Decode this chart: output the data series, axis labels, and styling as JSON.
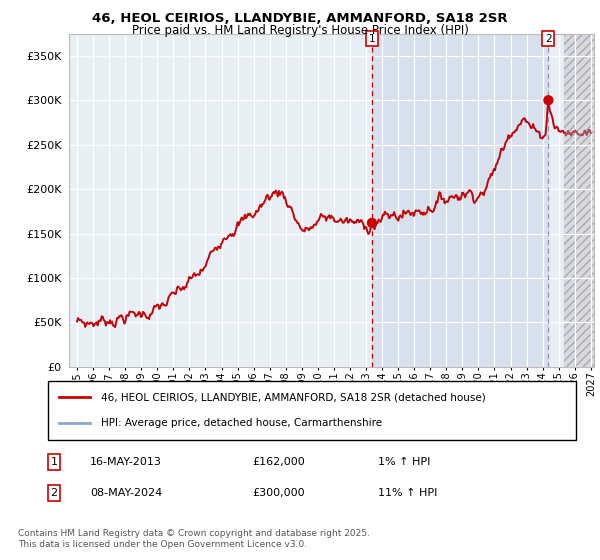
{
  "title": "46, HEOL CEIRIOS, LLANDYBIE, AMMANFORD, SA18 2SR",
  "subtitle": "Price paid vs. HM Land Registry's House Price Index (HPI)",
  "legend_line1": "46, HEOL CEIRIOS, LLANDYBIE, AMMANFORD, SA18 2SR (detached house)",
  "legend_line2": "HPI: Average price, detached house, Carmarthenshire",
  "transaction1_date": "16-MAY-2013",
  "transaction1_price": "£162,000",
  "transaction1_hpi": "1% ↑ HPI",
  "transaction2_date": "08-MAY-2024",
  "transaction2_price": "£300,000",
  "transaction2_hpi": "11% ↑ HPI",
  "footer": "Contains HM Land Registry data © Crown copyright and database right 2025.\nThis data is licensed under the Open Government Licence v3.0.",
  "hpi_color": "#88aacc",
  "price_color": "#cc0000",
  "marker_color": "#cc0000",
  "bg_color": "#e8eef5",
  "grid_color": "#ffffff",
  "vline1_color": "#cc0000",
  "vline2_color": "#8899aa",
  "ylim": [
    0,
    375000
  ],
  "yticks": [
    0,
    50000,
    100000,
    150000,
    200000,
    250000,
    300000,
    350000
  ],
  "xlim_start": 1994.5,
  "xlim_end": 2027.2,
  "future_start": 2025.33,
  "transaction1_x": 2013.37,
  "transaction1_y": 162000,
  "transaction2_x": 2024.36,
  "transaction2_y": 300000,
  "xlabel_years": [
    1995,
    1996,
    1997,
    1998,
    1999,
    2000,
    2001,
    2002,
    2003,
    2004,
    2005,
    2006,
    2007,
    2008,
    2009,
    2010,
    2011,
    2012,
    2013,
    2014,
    2015,
    2016,
    2017,
    2018,
    2019,
    2020,
    2021,
    2022,
    2023,
    2024,
    2025,
    2026,
    2027
  ],
  "anchors_t": [
    1995.0,
    1995.5,
    1996.0,
    1996.5,
    1997.0,
    1997.5,
    1998.0,
    1998.5,
    1999.0,
    1999.5,
    2000.0,
    2000.5,
    2001.0,
    2001.5,
    2002.0,
    2002.5,
    2003.0,
    2003.5,
    2004.0,
    2004.5,
    2005.0,
    2005.5,
    2006.0,
    2006.5,
    2007.0,
    2007.3,
    2007.7,
    2008.2,
    2008.7,
    2009.2,
    2009.7,
    2010.2,
    2010.7,
    2011.0,
    2011.5,
    2012.0,
    2012.5,
    2013.0,
    2013.37,
    2013.5,
    2014.0,
    2014.5,
    2015.0,
    2015.5,
    2016.0,
    2016.5,
    2017.0,
    2017.5,
    2018.0,
    2018.5,
    2019.0,
    2019.3,
    2019.7,
    2020.0,
    2020.3,
    2020.7,
    2021.0,
    2021.3,
    2021.7,
    2022.0,
    2022.3,
    2022.5,
    2022.8,
    2023.0,
    2023.2,
    2023.5,
    2023.8,
    2024.0,
    2024.2,
    2024.36,
    2024.5,
    2024.7,
    2025.0,
    2025.5,
    2026.0,
    2026.5,
    2027.0
  ],
  "anchors_v": [
    51000,
    49000,
    50000,
    52000,
    54000,
    55000,
    57000,
    58000,
    60000,
    62000,
    65000,
    70000,
    78000,
    85000,
    95000,
    102000,
    112000,
    130000,
    148000,
    158000,
    162000,
    165000,
    172000,
    182000,
    193000,
    196000,
    198000,
    185000,
    165000,
    152000,
    158000,
    165000,
    168000,
    167000,
    165000,
    162000,
    160000,
    159000,
    162000,
    163000,
    166000,
    168000,
    171000,
    173000,
    175000,
    177000,
    182000,
    186000,
    190000,
    194000,
    197000,
    198000,
    196000,
    197000,
    200000,
    208000,
    222000,
    235000,
    252000,
    268000,
    275000,
    282000,
    284000,
    278000,
    272000,
    265000,
    258000,
    262000,
    268000,
    300000,
    290000,
    278000,
    268000,
    264000,
    262000,
    263000,
    265000
  ]
}
